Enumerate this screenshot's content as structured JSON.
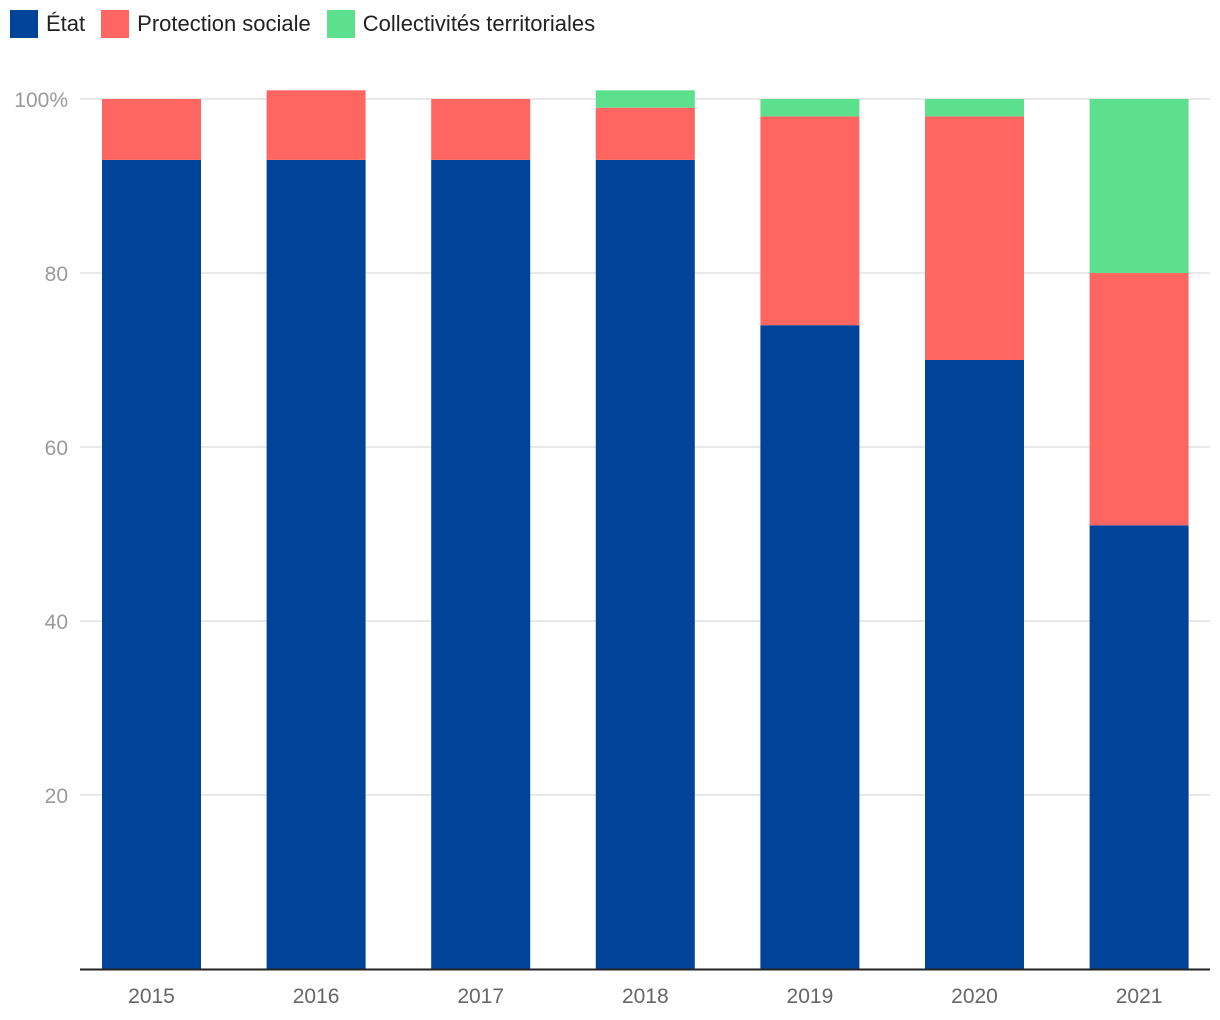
{
  "chart_data": {
    "type": "bar",
    "stacked": true,
    "title": "",
    "xlabel": "",
    "ylabel": "",
    "ylim": [
      0,
      100
    ],
    "y_ticks": [
      20,
      40,
      60,
      80,
      100
    ],
    "y_tick_labels": [
      "20",
      "40",
      "60",
      "80",
      "100%"
    ],
    "grid": true,
    "legend_position": "top-left",
    "categories": [
      "2015",
      "2016",
      "2017",
      "2018",
      "2019",
      "2020",
      "2021"
    ],
    "series": [
      {
        "name": "État",
        "color": "#00449a",
        "values": [
          93,
          93,
          93,
          93,
          74,
          70,
          51
        ]
      },
      {
        "name": "Protection sociale",
        "color": "#ff6661",
        "values": [
          7,
          8,
          7,
          6,
          24,
          28,
          29
        ]
      },
      {
        "name": "Collectivités territoriales",
        "color": "#5de08d",
        "values": [
          0,
          0,
          0,
          2,
          2,
          2,
          20
        ]
      }
    ]
  }
}
